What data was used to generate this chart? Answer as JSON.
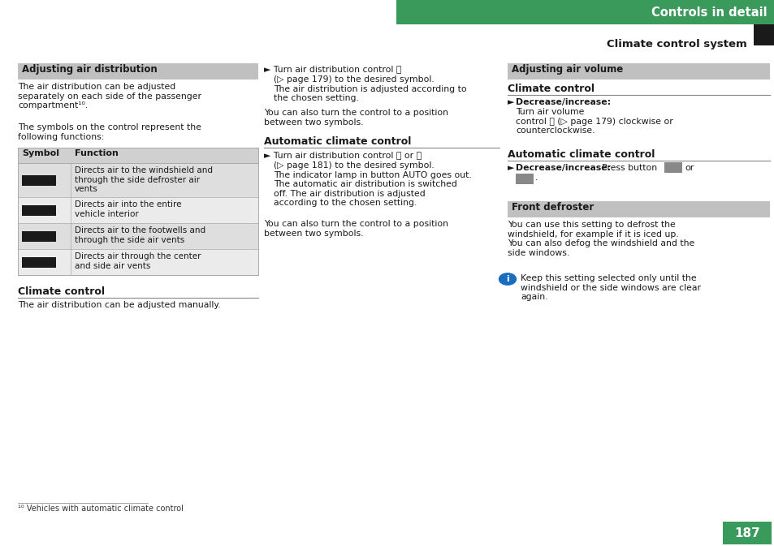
{
  "page_bg": "#ffffff",
  "green_color": "#3a9a5c",
  "gray_bar_color": "#c0c0c0",
  "dark_color": "#222222",
  "text_color": "#1a1a1a",
  "page_number": "187",
  "header_text": "Controls in detail",
  "subheader_text": "Climate control system"
}
